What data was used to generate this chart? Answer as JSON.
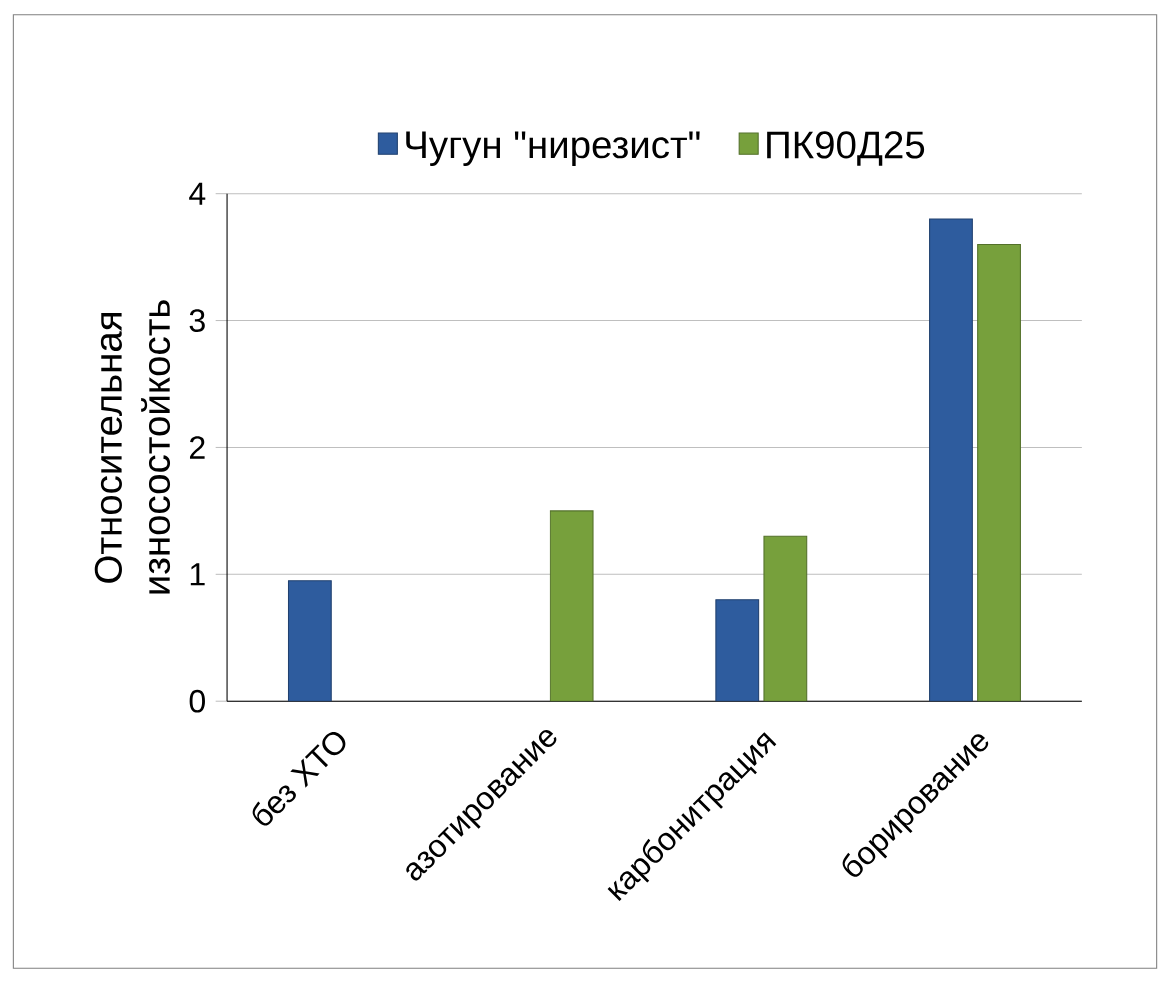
{
  "chart_data": {
    "type": "bar",
    "ylabel": "Относительная износостойкость",
    "categories": [
      "без ХТО",
      "азотирование",
      "карбонитрация",
      "борирование"
    ],
    "series": [
      {
        "name": "Чугун \"нирезист\"",
        "color": "#2e5c9e",
        "values": [
          0.95,
          null,
          0.8,
          3.8
        ]
      },
      {
        "name": "ПК90Д25",
        "color": "#77a03c",
        "values": [
          null,
          1.5,
          1.3,
          3.6
        ]
      }
    ],
    "ylim": [
      0,
      4
    ],
    "yticks": [
      0,
      1,
      2,
      3,
      4
    ],
    "grid": "y",
    "legend": "top"
  }
}
